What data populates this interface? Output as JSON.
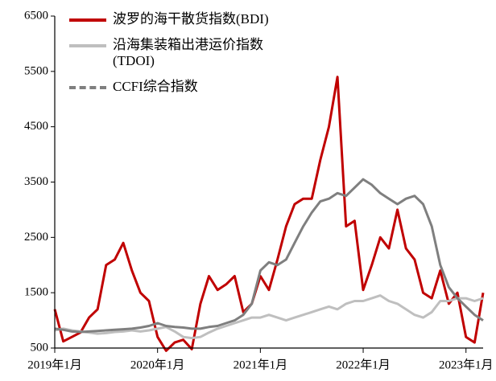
{
  "chart_data": {
    "type": "line",
    "x": [
      "2019-01",
      "2019-02",
      "2019-03",
      "2019-04",
      "2019-05",
      "2019-06",
      "2019-07",
      "2019-08",
      "2019-09",
      "2019-10",
      "2019-11",
      "2019-12",
      "2020-01",
      "2020-02",
      "2020-03",
      "2020-04",
      "2020-05",
      "2020-06",
      "2020-07",
      "2020-08",
      "2020-09",
      "2020-10",
      "2020-11",
      "2020-12",
      "2021-01",
      "2021-02",
      "2021-03",
      "2021-04",
      "2021-05",
      "2021-06",
      "2021-07",
      "2021-08",
      "2021-09",
      "2021-10",
      "2021-11",
      "2021-12",
      "2022-01",
      "2022-02",
      "2022-03",
      "2022-04",
      "2022-05",
      "2022-06",
      "2022-07",
      "2022-08",
      "2022-09",
      "2022-10",
      "2022-11",
      "2022-12",
      "2023-01",
      "2023-02",
      "2023-03"
    ],
    "series": [
      {
        "name": "波罗的海干散货指数(BDI)",
        "color": "#c00000",
        "values": [
          1200,
          620,
          700,
          780,
          1050,
          1200,
          2000,
          2100,
          2400,
          1900,
          1500,
          1350,
          700,
          450,
          600,
          650,
          480,
          1300,
          1800,
          1550,
          1650,
          1800,
          1150,
          1300,
          1800,
          1550,
          2100,
          2700,
          3100,
          3200,
          3200,
          3900,
          4500,
          5400,
          2700,
          2800,
          1550,
          2000,
          2500,
          2300,
          3000,
          2300,
          2100,
          1500,
          1400,
          1900,
          1300,
          1500,
          700,
          600,
          1500
        ]
      },
      {
        "name": "沿海集装箱出港运价指数(TDOI)",
        "color": "#bfbfbf",
        "values": [
          820,
          850,
          820,
          800,
          780,
          760,
          770,
          790,
          800,
          820,
          800,
          820,
          850,
          880,
          800,
          700,
          680,
          700,
          780,
          850,
          900,
          950,
          1000,
          1050,
          1050,
          1100,
          1050,
          1000,
          1050,
          1100,
          1150,
          1200,
          1250,
          1200,
          1300,
          1350,
          1350,
          1400,
          1450,
          1350,
          1300,
          1200,
          1100,
          1050,
          1150,
          1350,
          1350,
          1400,
          1400,
          1350,
          1400
        ]
      },
      {
        "name": "CCFI综合指数",
        "color": "#7f7f7f",
        "dashed": true,
        "values": [
          850,
          830,
          800,
          790,
          800,
          810,
          820,
          830,
          840,
          850,
          870,
          900,
          950,
          900,
          880,
          870,
          850,
          850,
          880,
          900,
          950,
          1000,
          1100,
          1300,
          1900,
          2050,
          2000,
          2100,
          2400,
          2700,
          2950,
          3150,
          3200,
          3300,
          3250,
          3400,
          3550,
          3450,
          3300,
          3200,
          3100,
          3200,
          3250,
          3100,
          2700,
          2000,
          1600,
          1400,
          1250,
          1100,
          1000
        ]
      }
    ],
    "xlim": [
      "2019-01",
      "2023-03"
    ],
    "xticks": [
      {
        "value": "2019-01",
        "label": "2019年1月"
      },
      {
        "value": "2020-01",
        "label": "2020年1月"
      },
      {
        "value": "2021-01",
        "label": "2021年1月"
      },
      {
        "value": "2022-01",
        "label": "2022年1月"
      },
      {
        "value": "2023-01",
        "label": "2023年1月"
      }
    ],
    "ylim": [
      500,
      6500
    ],
    "yticks": [
      500,
      1500,
      2500,
      3500,
      4500,
      5500,
      6500
    ]
  }
}
